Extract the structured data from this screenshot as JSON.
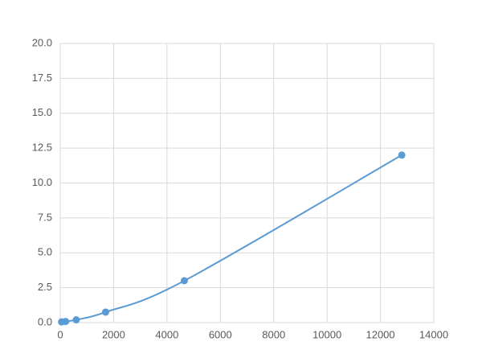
{
  "chart_data": {
    "type": "scatter",
    "smooth_line": true,
    "color": "#5b9bd5",
    "x": [
      50,
      200,
      600,
      1700,
      4650,
      12800
    ],
    "values": [
      0.05,
      0.08,
      0.2,
      0.75,
      3.0,
      12.0
    ],
    "xlim": [
      0,
      14000
    ],
    "xticks": [
      0,
      2000,
      4000,
      6000,
      8000,
      10000,
      12000,
      14000
    ],
    "ylim": [
      0,
      20
    ],
    "yticks": [
      {
        "value": 0,
        "label": "0.0"
      },
      {
        "value": 2.5,
        "label": "2.5"
      },
      {
        "value": 5,
        "label": "5.0"
      },
      {
        "value": 7.5,
        "label": "7.5"
      },
      {
        "value": 10,
        "label": "10.0"
      },
      {
        "value": 12.5,
        "label": "12.5"
      },
      {
        "value": 15,
        "label": "15.0"
      },
      {
        "value": 17.5,
        "label": "17.5"
      },
      {
        "value": 20,
        "label": "20.0"
      }
    ],
    "grid": true
  }
}
